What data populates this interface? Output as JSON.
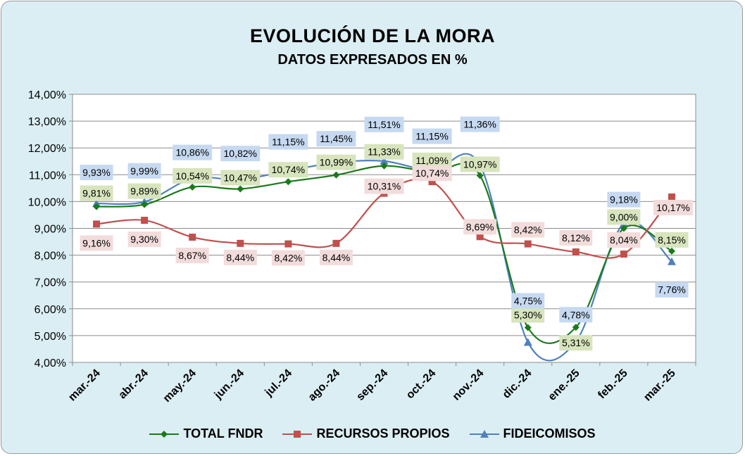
{
  "chart_data": {
    "type": "line",
    "title": "EVOLUCIÓN DE LA MORA",
    "subtitle": "DATOS EXPRESADOS EN %",
    "categories": [
      "mar.-24",
      "abr.-24",
      "may.-24",
      "jun.-24",
      "jul.-24",
      "ago.-24",
      "sep.-24",
      "oct.-24",
      "nov.-24",
      "dic.-24",
      "ene.-25",
      "feb.-25",
      "mar.-25"
    ],
    "ylim": [
      4,
      14
    ],
    "yticks": [
      "4,00%",
      "5,00%",
      "6,00%",
      "7,00%",
      "8,00%",
      "9,00%",
      "10,00%",
      "11,00%",
      "12,00%",
      "13,00%",
      "14,00%"
    ],
    "grid": true,
    "legend_position": "bottom",
    "series": [
      {
        "name": "TOTAL FNDR",
        "color": "#1a7a1a",
        "label_bg": "#d7e4bd",
        "marker": "diamond",
        "values": [
          9.81,
          9.89,
          10.54,
          10.47,
          10.74,
          10.99,
          11.33,
          11.09,
          10.97,
          5.3,
          5.31,
          9.0,
          8.15
        ],
        "labels": [
          "9,81%",
          "9,89%",
          "10,54%",
          "10,47%",
          "10,74%",
          "10,99%",
          "11,33%",
          "11,09%",
          "10,97%",
          "5,30%",
          "5,31%",
          "9,00%",
          "8,15%"
        ]
      },
      {
        "name": "RECURSOS PROPIOS",
        "color": "#c0504d",
        "label_bg": "#f2dcdb",
        "marker": "square",
        "values": [
          9.16,
          9.3,
          8.67,
          8.44,
          8.42,
          8.44,
          10.31,
          10.74,
          8.69,
          8.42,
          8.12,
          8.04,
          10.17
        ],
        "labels": [
          "9,16%",
          "9,30%",
          "8,67%",
          "8,44%",
          "8,42%",
          "8,44%",
          "10,31%",
          "10,74%",
          "8,69%",
          "8,42%",
          "8,12%",
          "8,04%",
          "10,17%"
        ]
      },
      {
        "name": "FIDEICOMISOS",
        "color": "#4f81bd",
        "label_bg": "#c6d9f1",
        "marker": "triangle",
        "values": [
          9.93,
          9.99,
          10.86,
          10.82,
          11.15,
          11.45,
          11.51,
          11.15,
          11.36,
          4.75,
          4.78,
          9.18,
          7.76
        ],
        "labels": [
          "9,93%",
          "9,99%",
          "10,86%",
          "10,82%",
          "11,15%",
          "11,45%",
          "11,51%",
          "11,15%",
          "11,36%",
          "4,75%",
          "4,78%",
          "9,18%",
          "7,76%"
        ]
      }
    ]
  }
}
